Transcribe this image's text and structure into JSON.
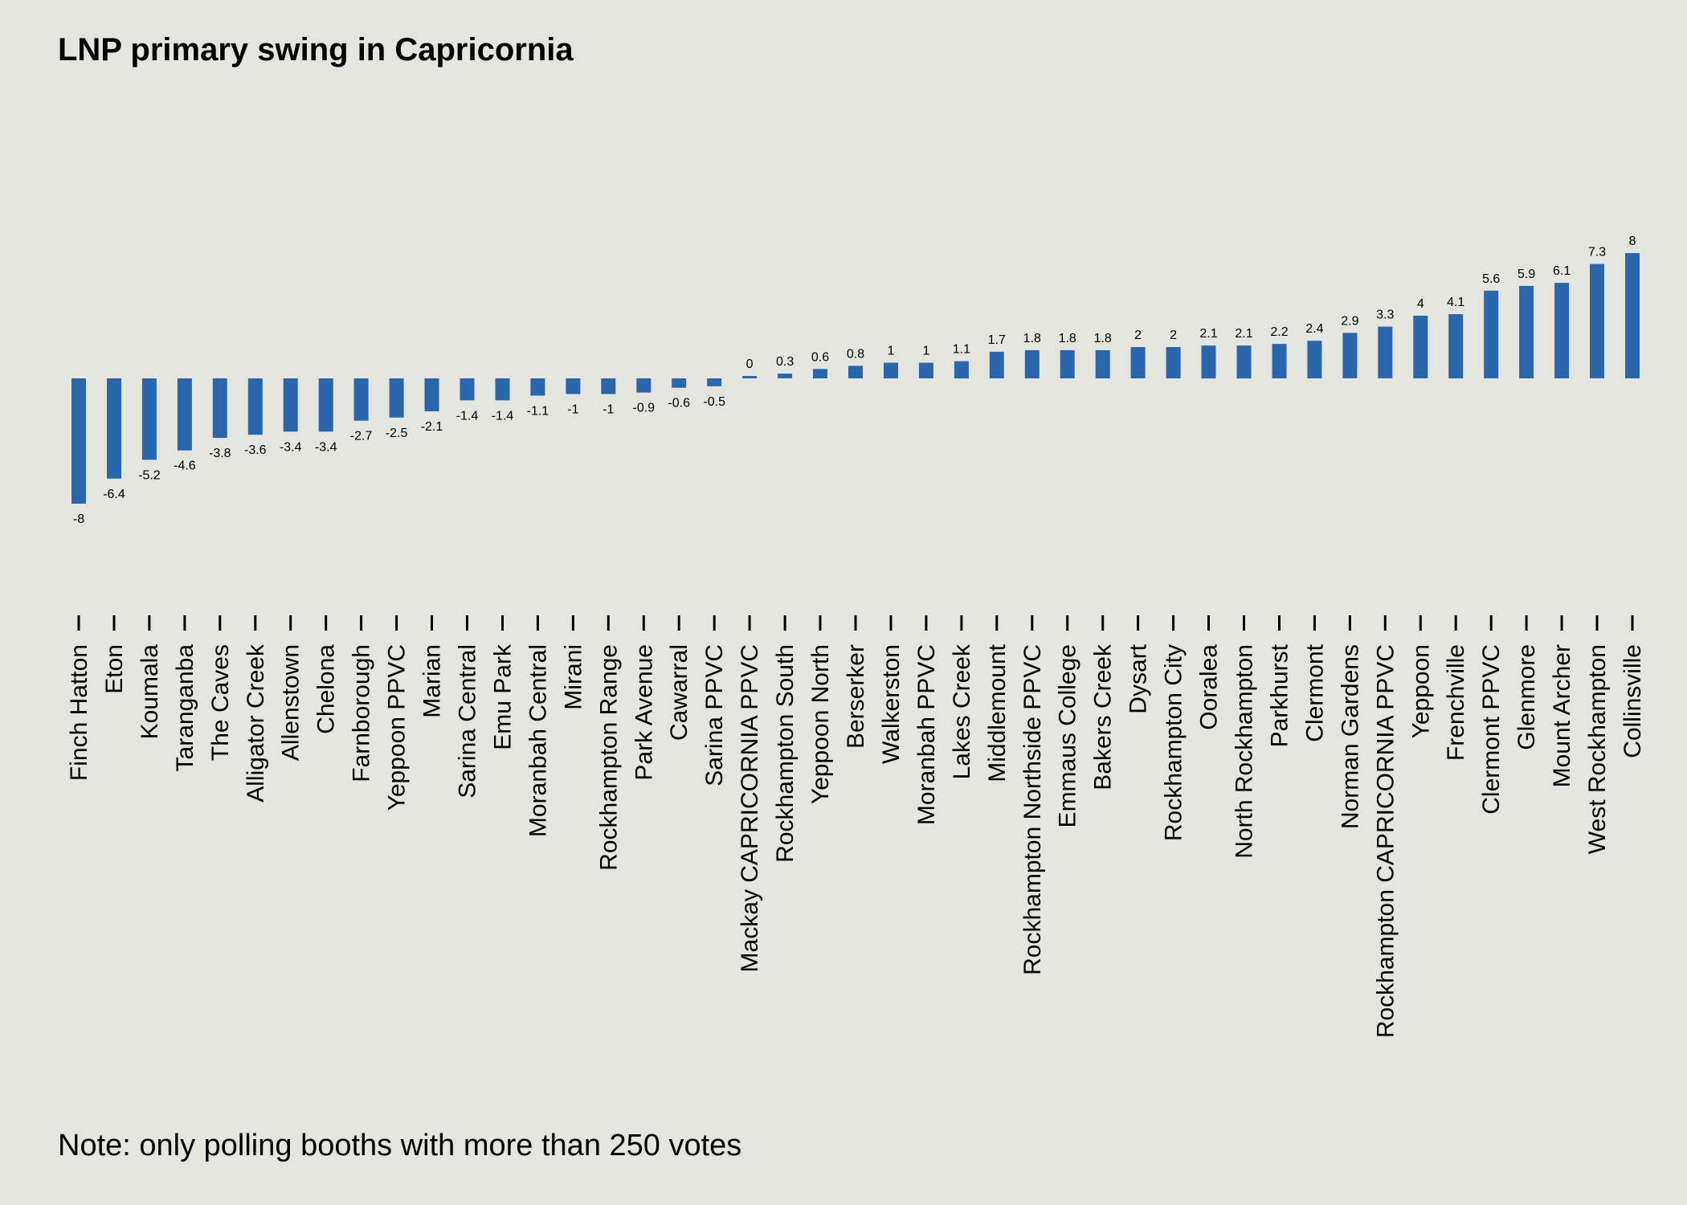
{
  "chart_data": {
    "type": "bar",
    "title": "LNP primary swing in Capricornia",
    "note": "Note: only polling booths with more than 250 votes",
    "xlabel": "",
    "ylabel": "",
    "ylim": [
      -8,
      8
    ],
    "grid": false,
    "legend": "none",
    "bar_color": "#2b66ac",
    "categories": [
      "Finch Hatton",
      "Eton",
      "Koumala",
      "Taranganba",
      "The Caves",
      "Alligator Creek",
      "Allenstown",
      "Chelona",
      "Farnborough",
      "Yeppoon PPVC",
      "Marian",
      "Sarina Central",
      "Emu Park",
      "Moranbah Central",
      "Mirani",
      "Rockhampton Range",
      "Park Avenue",
      "Cawarral",
      "Sarina PPVC",
      "Mackay CAPRICORNIA PPVC",
      "Rockhampton South",
      "Yeppoon North",
      "Berserker",
      "Walkerston",
      "Moranbah PPVC",
      "Lakes Creek",
      "Middlemount",
      "Rockhampton Northside PPVC",
      "Emmaus College",
      "Bakers Creek",
      "Dysart",
      "Rockhampton City",
      "Ooralea",
      "North Rockhampton",
      "Parkhurst",
      "Clermont",
      "Norman Gardens",
      "Rockhampton CAPRICORNIA PPVC",
      "Yeppoon",
      "Frenchville",
      "Clermont PPVC",
      "Glenmore",
      "Mount Archer",
      "West Rockhampton",
      "Collinsville"
    ],
    "values": [
      -8,
      -6.4,
      -5.2,
      -4.6,
      -3.8,
      -3.6,
      -3.4,
      -3.4,
      -2.7,
      -2.5,
      -2.1,
      -1.4,
      -1.4,
      -1.1,
      -1,
      -1,
      -0.9,
      -0.6,
      -0.5,
      0,
      0.3,
      0.6,
      0.8,
      1,
      1,
      1.1,
      1.7,
      1.8,
      1.8,
      1.8,
      2,
      2,
      2.1,
      2.1,
      2.2,
      2.4,
      2.9,
      3.3,
      4,
      4.1,
      5.6,
      5.9,
      6.1,
      7.3,
      8
    ],
    "labels": [
      "-8",
      "-6.4",
      "-5.2",
      "-4.6",
      "-3.8",
      "-3.6",
      "-3.4",
      "-3.4",
      "-2.7",
      "-2.5",
      "-2.1",
      "-1.4",
      "-1.4",
      "-1.1",
      "-1",
      "-1",
      "-0.9",
      "-0.6",
      "-0.5",
      "0",
      "0.3",
      "0.6",
      "0.8",
      "1",
      "1",
      "1.1",
      "1.7",
      "1.8",
      "1.8",
      "1.8",
      "2",
      "2",
      "2.1",
      "2.1",
      "2.2",
      "2.4",
      "2.9",
      "3.3",
      "4",
      "4.1",
      "5.6",
      "5.9",
      "6.1",
      "7.3",
      "8"
    ]
  }
}
